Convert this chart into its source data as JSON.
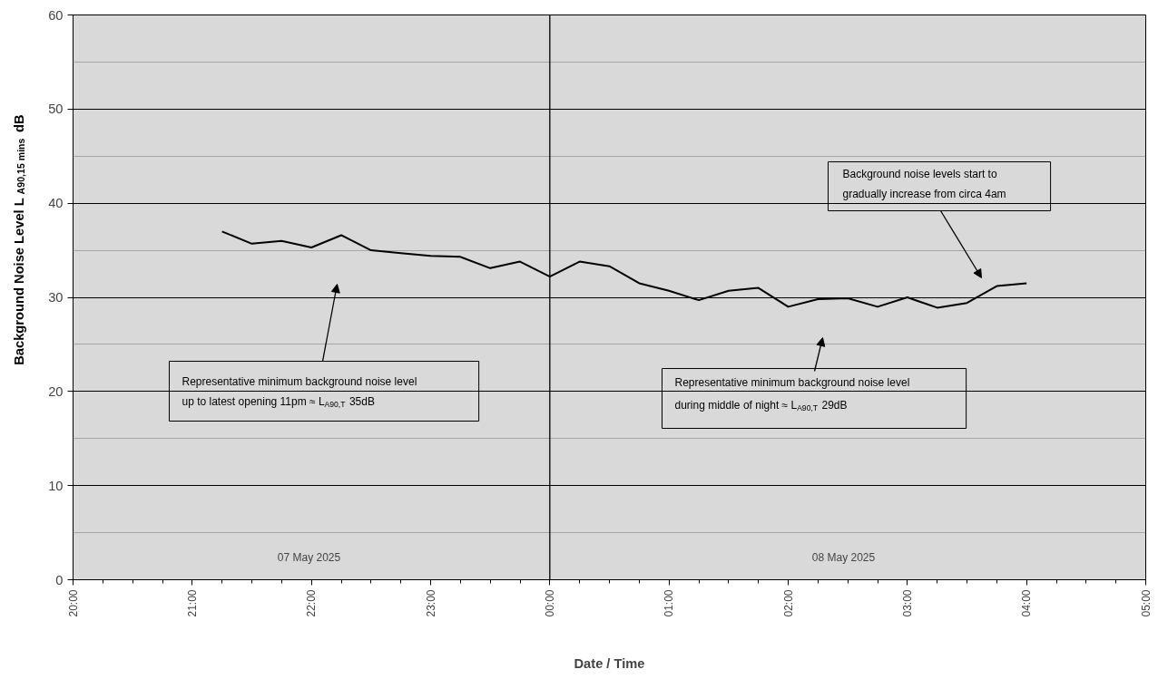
{
  "chart_data": {
    "type": "line",
    "xlabel": "Date / Time",
    "ylabel": "Background Noise Level L$_{A90,15 mins}$ dB",
    "x": [
      "2025-05-07T21:15",
      "2025-05-07T21:30",
      "2025-05-07T21:45",
      "2025-05-07T22:00",
      "2025-05-07T22:15",
      "2025-05-07T22:30",
      "2025-05-07T22:45",
      "2025-05-07T23:00",
      "2025-05-07T23:15",
      "2025-05-07T23:30",
      "2025-05-07T23:45",
      "2025-05-08T00:00",
      "2025-05-08T00:15",
      "2025-05-08T00:30",
      "2025-05-08T00:45",
      "2025-05-08T01:00",
      "2025-05-08T01:15",
      "2025-05-08T01:30",
      "2025-05-08T01:45",
      "2025-05-08T02:00",
      "2025-05-08T02:15",
      "2025-05-08T02:30",
      "2025-05-08T02:45",
      "2025-05-08T03:00",
      "2025-05-08T03:15",
      "2025-05-08T03:30",
      "2025-05-08T03:45",
      "2025-05-08T04:00"
    ],
    "series": [
      {
        "color": "#000000",
        "values": [
          37.0,
          35.7,
          36.0,
          35.3,
          36.6,
          35.0,
          34.7,
          34.4,
          34.3,
          33.1,
          33.8,
          32.2,
          33.8,
          33.3,
          31.5,
          30.7,
          29.7,
          30.7,
          31.0,
          29.0,
          29.8,
          29.9,
          29.0,
          30.0,
          28.9,
          29.4,
          31.2,
          31.5
        ]
      }
    ],
    "xlim": [
      "2025-05-07T20:00",
      "2025-05-08T05:00"
    ],
    "ylim": [
      0,
      60
    ],
    "xticks": [
      {
        "value": "2025-05-07T20:00",
        "label": "20:00"
      },
      {
        "value": "2025-05-07T21:00",
        "label": "21:00"
      },
      {
        "value": "2025-05-07T22:00",
        "label": "22:00"
      },
      {
        "value": "2025-05-07T23:00",
        "label": "23:00"
      },
      {
        "value": "2025-05-08T00:00",
        "label": "00:00"
      },
      {
        "value": "2025-05-08T01:00",
        "label": "01:00"
      },
      {
        "value": "2025-05-08T02:00",
        "label": "02:00"
      },
      {
        "value": "2025-05-08T03:00",
        "label": "03:00"
      },
      {
        "value": "2025-05-08T04:00",
        "label": "04:00"
      },
      {
        "value": "2025-05-08T05:00",
        "label": "05:00"
      }
    ],
    "yticks": [
      0,
      10,
      20,
      30,
      40,
      50,
      60
    ],
    "ref_lines": [
      {
        "axis": "x",
        "value": "2025-05-08T00:00",
        "color": "#000000"
      }
    ],
    "annotations": [
      "Representative  minimum background noise level\nup to latest opening 11pm ≈ L$_{A90,T}$ 35dB",
      "Representative  minimum background noise level\nduring middle of night ≈ L$_{A90,T}$ 29dB",
      "Background noise levels start to\ngradually increase from circa 4am",
      "07 May 2025",
      "08 May 2025"
    ],
    "grid": "y",
    "marker": "none",
    "line_style": "solid"
  }
}
